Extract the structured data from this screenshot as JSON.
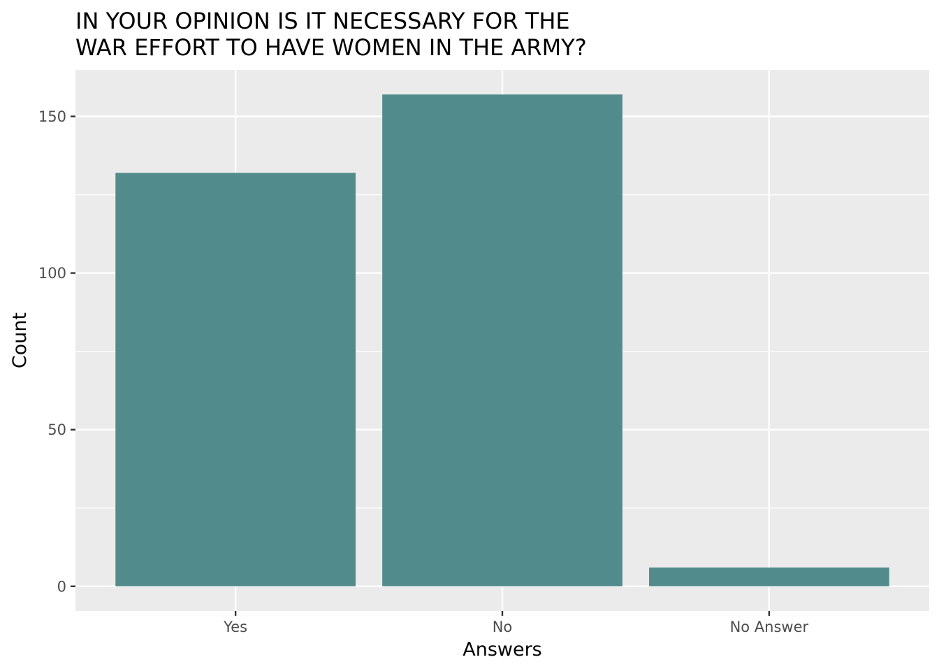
{
  "chart_data": {
    "type": "bar",
    "title_lines": [
      "IN YOUR OPINION IS IT NECESSARY FOR THE",
      "WAR EFFORT TO HAVE WOMEN IN THE ARMY?"
    ],
    "xlabel": "Answers",
    "ylabel": "Count",
    "categories": [
      "Yes",
      "No",
      "No Answer"
    ],
    "values": [
      132,
      157,
      6
    ],
    "ylim": [
      -7.85,
      164.85
    ],
    "yticks": [
      0,
      50,
      100,
      150
    ],
    "ytick_labels": [
      "0",
      "50",
      "100",
      "150"
    ],
    "grid": true,
    "legend": "none",
    "colors": {
      "bar": "#528B8B",
      "panel": "#EBEBEB",
      "grid": "#FFFFFF",
      "tick": "#333333",
      "tick_label": "#4D4D4D"
    }
  }
}
